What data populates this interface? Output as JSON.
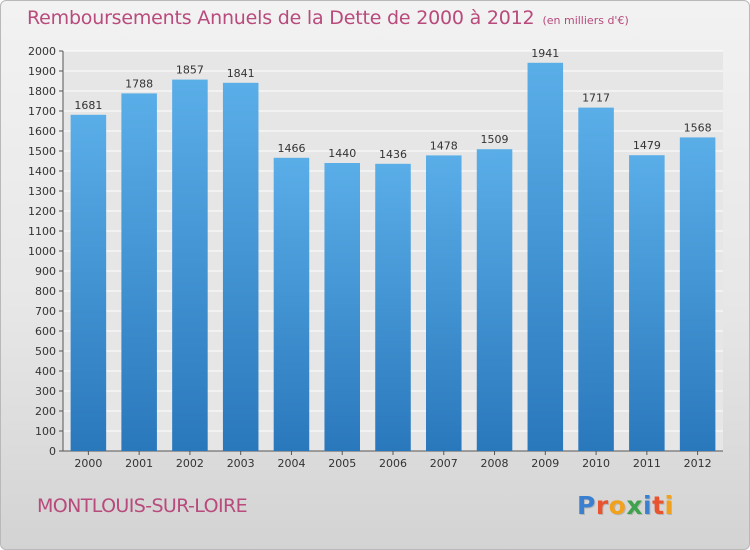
{
  "header": {
    "title": "Remboursements Annuels de la Dette de 2000 à 2012",
    "unit": "(en milliers d'€)"
  },
  "footer": {
    "commune": "MONTLOUIS-SUR-LOIRE",
    "logo": "Proxiti",
    "logo_colors": [
      "#3b7fd1",
      "#e8542f",
      "#f2a11d",
      "#3fa34d",
      "#3b7fd1",
      "#e8542f",
      "#f2a11d"
    ]
  },
  "chart_data": {
    "type": "bar",
    "categories": [
      "2000",
      "2001",
      "2002",
      "2003",
      "2004",
      "2005",
      "2006",
      "2007",
      "2008",
      "2009",
      "2010",
      "2011",
      "2012"
    ],
    "values": [
      1681,
      1788,
      1857,
      1841,
      1466,
      1440,
      1436,
      1478,
      1509,
      1941,
      1717,
      1479,
      1568
    ],
    "ylim": [
      0,
      2000
    ],
    "ytick_step": 100,
    "grid": true,
    "bar_color": "#5aaee8",
    "bar_color_dark": "#2a78bc",
    "label_color": "#333333"
  }
}
